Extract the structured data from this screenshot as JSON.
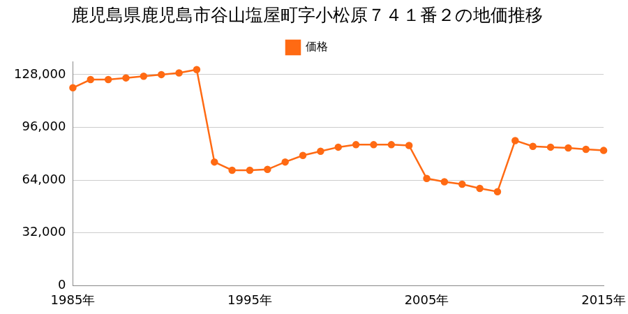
{
  "chart_data": {
    "type": "line",
    "title": "鹿児島県鹿児島市谷山塩屋町字小松原７４１番２の地価推移",
    "categories": [
      "1985年",
      null,
      null,
      null,
      null,
      null,
      null,
      null,
      null,
      null,
      "1995年",
      null,
      null,
      null,
      null,
      null,
      null,
      null,
      null,
      null,
      "2005年",
      null,
      null,
      null,
      null,
      null,
      null,
      null,
      null,
      null,
      "2015年"
    ],
    "series": [
      {
        "name": "価格",
        "color": "#ff6a13",
        "marker": "circle",
        "values": [
          120000,
          125000,
          125000,
          126000,
          127000,
          128000,
          129000,
          131000,
          75000,
          70000,
          70000,
          70500,
          75000,
          79000,
          81500,
          84000,
          85500,
          85500,
          85500,
          85000,
          65000,
          63000,
          61500,
          59000,
          57000,
          88000,
          84500,
          84000,
          83500,
          82700,
          82000
        ]
      }
    ],
    "ylim": [
      0,
      136000
    ],
    "yticks": [
      0,
      {
        "value": 32000,
        "label": "32,000"
      },
      {
        "value": 64000,
        "label": "64,000"
      },
      {
        "value": 96000,
        "label": "96,000"
      },
      {
        "value": 128000,
        "label": "128,000"
      }
    ],
    "grid": true,
    "legend": "top"
  }
}
